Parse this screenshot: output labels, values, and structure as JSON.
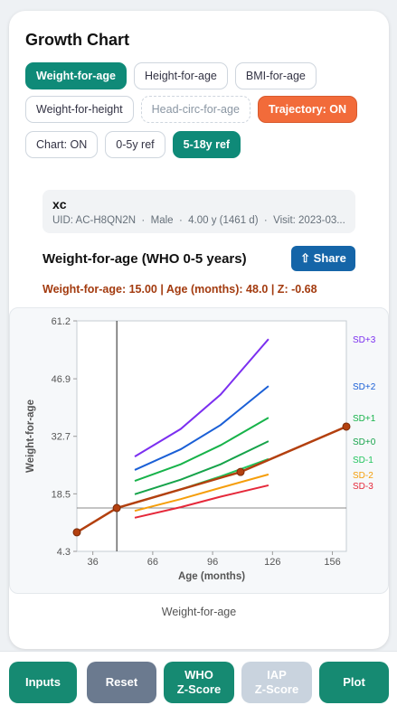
{
  "header": {
    "title": "Growth Chart"
  },
  "chips": [
    [
      "Weight-for-age",
      "Height-for-age",
      "BMI-for-age"
    ],
    [
      "Weight-for-height",
      "Head-circ-for-age",
      "Trajectory: ON"
    ],
    [
      "Chart: ON",
      "0-5y ref",
      "5-18y ref"
    ]
  ],
  "patient": {
    "name": "xc",
    "details": "UID: AC-H8QN2N  ·  Male  ·  4.00 y (1461 d)  ·  Visit: 2023-03..."
  },
  "section": {
    "title": "Weight-for-age (WHO 0-5 years)",
    "share": "⇧ Share",
    "status": "Weight-for-age: 15.00 | Age (months): 48.0 | Z: -0.68",
    "caption": "Weight-for-age"
  },
  "chart_data": {
    "type": "line",
    "xlabel": "Age (months)",
    "ylabel": "Weight-for-age",
    "xlim": [
      28,
      163
    ],
    "ylim": [
      4.3,
      61.2
    ],
    "xticks": [
      36,
      66,
      96,
      126,
      156
    ],
    "yticks": [
      4.3,
      18.5,
      32.7,
      46.9,
      61.2
    ],
    "grid": false,
    "series": [
      {
        "name": "SD+3",
        "color": "#7b2ff0",
        "x": [
          57,
          80,
          100,
          124
        ],
        "values": [
          27.7,
          34.5,
          43,
          56.7
        ]
      },
      {
        "name": "SD+2",
        "color": "#1a5fd6",
        "x": [
          57,
          80,
          100,
          124
        ],
        "values": [
          24.4,
          29.5,
          35.5,
          45.1
        ]
      },
      {
        "name": "SD+1",
        "color": "#17b34a",
        "x": [
          57,
          80,
          100,
          124
        ],
        "values": [
          21.7,
          25.8,
          30.5,
          37.3
        ]
      },
      {
        "name": "SD+0",
        "color": "#16a34a",
        "x": [
          57,
          80,
          100,
          124
        ],
        "values": [
          18.4,
          22.0,
          25.8,
          31.5
        ]
      },
      {
        "name": "SD-1",
        "color": "#22c55e",
        "x": [
          57,
          80,
          100,
          124
        ],
        "values": [
          16.3,
          19.6,
          22.8,
          27.1
        ]
      },
      {
        "name": "SD-2",
        "color": "#f59e0b",
        "x": [
          57,
          80,
          100,
          124
        ],
        "values": [
          14.3,
          17.2,
          20.0,
          23.3
        ]
      },
      {
        "name": "SD-3",
        "color": "#e5283a",
        "x": [
          57,
          80,
          100,
          124
        ],
        "values": [
          12.6,
          15.2,
          17.8,
          20.6
        ]
      },
      {
        "color": "#b3400f",
        "x": [
          28,
          48,
          110,
          163
        ],
        "values": [
          9.0,
          15,
          23.9,
          35.1
        ]
      }
    ]
  },
  "buttons": [
    "Inputs",
    "Reset",
    "WHO\nZ-Score",
    "IAP\nZ-Score",
    "Plot"
  ]
}
